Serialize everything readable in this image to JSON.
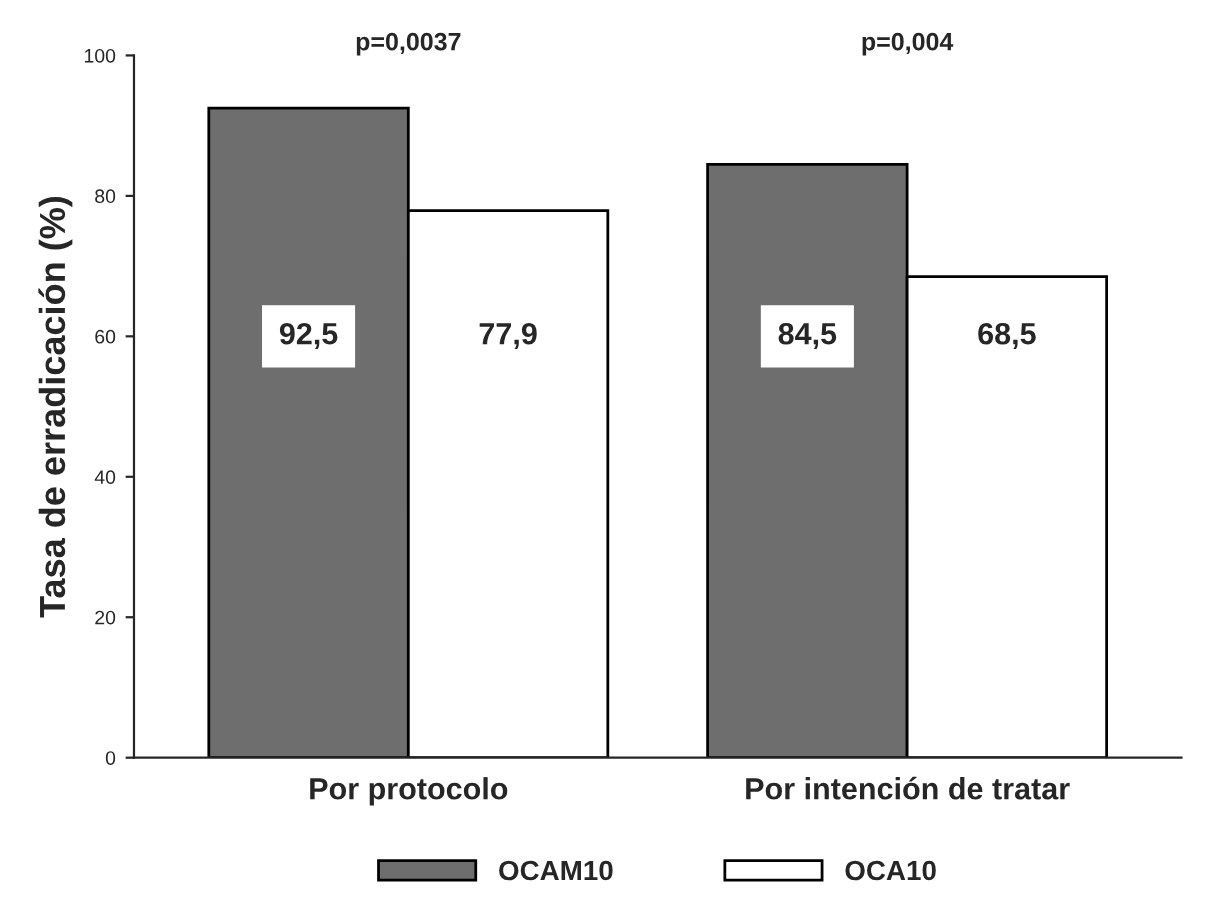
{
  "chart_data": {
    "type": "bar",
    "ylabel": "Tasa de erradicación (%)",
    "categories": [
      "Por protocolo",
      "Por intención de tratar"
    ],
    "series": [
      {
        "name": "OCAM10",
        "color": "#6e6e6e",
        "values": [
          92.5,
          84.5
        ],
        "value_labels": [
          "92,5",
          "84,5"
        ]
      },
      {
        "name": "OCA10",
        "color": "#ffffff",
        "values": [
          77.9,
          68.5
        ],
        "value_labels": [
          "77,9",
          "68,5"
        ]
      }
    ],
    "ylim": [
      0,
      100
    ],
    "yticks": [
      0,
      20,
      40,
      60,
      80,
      100
    ],
    "grid": false,
    "legend": "bottom",
    "annotations": [
      "p=0,0037",
      "p=0,004"
    ]
  }
}
